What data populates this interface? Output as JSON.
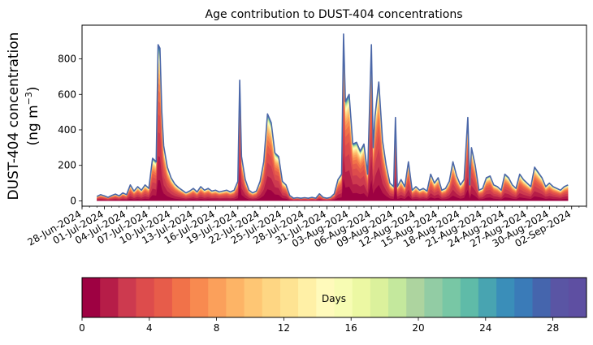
{
  "chart_data": {
    "type": "area",
    "title": "Age contribution to DUST-404 concentrations",
    "ylabel_line1": "DUST-404 concentration",
    "ylabel_line2": "(ng m",
    "ylabel_sup": "−3",
    "ylabel_close": ")",
    "ylim": [
      -30,
      990
    ],
    "yticks": [
      0,
      200,
      400,
      600,
      800
    ],
    "x_start": "2024-06-28",
    "x_end": "2024-09-04",
    "xticks": [
      "28-Jun-2024",
      "01-Jul-2024",
      "04-Jul-2024",
      "07-Jul-2024",
      "10-Jul-2024",
      "13-Jul-2024",
      "16-Jul-2024",
      "19-Jul-2024",
      "22-Jul-2024",
      "25-Jul-2024",
      "28-Jul-2024",
      "31-Jul-2024",
      "03-Aug-2024",
      "06-Aug-2024",
      "09-Aug-2024",
      "12-Aug-2024",
      "15-Aug-2024",
      "18-Aug-2024",
      "21-Aug-2024",
      "24-Aug-2024",
      "27-Aug-2024",
      "30-Aug-2024",
      "02-Sep-2024"
    ],
    "total_series": {
      "name": "total",
      "color": "#4b67a8",
      "points": [
        [
          "2024-06-30 00:00",
          25
        ],
        [
          "2024-06-30 12:00",
          35
        ],
        [
          "2024-07-01 00:00",
          28
        ],
        [
          "2024-07-01 12:00",
          20
        ],
        [
          "2024-07-02 00:00",
          30
        ],
        [
          "2024-07-02 12:00",
          38
        ],
        [
          "2024-07-03 00:00",
          28
        ],
        [
          "2024-07-03 12:00",
          45
        ],
        [
          "2024-07-04 00:00",
          35
        ],
        [
          "2024-07-04 12:00",
          90
        ],
        [
          "2024-07-05 00:00",
          55
        ],
        [
          "2024-07-05 12:00",
          80
        ],
        [
          "2024-07-06 00:00",
          60
        ],
        [
          "2024-07-06 12:00",
          90
        ],
        [
          "2024-07-07 00:00",
          70
        ],
        [
          "2024-07-07 12:00",
          240
        ],
        [
          "2024-07-08 00:00",
          220
        ],
        [
          "2024-07-08 06:00",
          880
        ],
        [
          "2024-07-08 12:00",
          860
        ],
        [
          "2024-07-08 18:00",
          500
        ],
        [
          "2024-07-09 00:00",
          310
        ],
        [
          "2024-07-09 12:00",
          190
        ],
        [
          "2024-07-10 00:00",
          130
        ],
        [
          "2024-07-10 12:00",
          95
        ],
        [
          "2024-07-11 00:00",
          75
        ],
        [
          "2024-07-11 12:00",
          60
        ],
        [
          "2024-07-12 00:00",
          45
        ],
        [
          "2024-07-12 12:00",
          55
        ],
        [
          "2024-07-13 00:00",
          70
        ],
        [
          "2024-07-13 12:00",
          50
        ],
        [
          "2024-07-14 00:00",
          80
        ],
        [
          "2024-07-14 12:00",
          60
        ],
        [
          "2024-07-15 00:00",
          70
        ],
        [
          "2024-07-15 12:00",
          55
        ],
        [
          "2024-07-16 00:00",
          60
        ],
        [
          "2024-07-16 12:00",
          50
        ],
        [
          "2024-07-17 00:00",
          55
        ],
        [
          "2024-07-17 12:00",
          60
        ],
        [
          "2024-07-18 00:00",
          50
        ],
        [
          "2024-07-18 12:00",
          60
        ],
        [
          "2024-07-19 00:00",
          110
        ],
        [
          "2024-07-19 06:00",
          680
        ],
        [
          "2024-07-19 12:00",
          250
        ],
        [
          "2024-07-20 00:00",
          120
        ],
        [
          "2024-07-20 12:00",
          60
        ],
        [
          "2024-07-21 00:00",
          45
        ],
        [
          "2024-07-21 12:00",
          55
        ],
        [
          "2024-07-22 00:00",
          110
        ],
        [
          "2024-07-22 12:00",
          220
        ],
        [
          "2024-07-23 00:00",
          490
        ],
        [
          "2024-07-23 12:00",
          440
        ],
        [
          "2024-07-24 00:00",
          270
        ],
        [
          "2024-07-24 12:00",
          250
        ],
        [
          "2024-07-25 00:00",
          110
        ],
        [
          "2024-07-25 12:00",
          90
        ],
        [
          "2024-07-26 00:00",
          30
        ],
        [
          "2024-07-26 12:00",
          15
        ],
        [
          "2024-07-27 00:00",
          18
        ],
        [
          "2024-07-27 12:00",
          15
        ],
        [
          "2024-07-28 00:00",
          18
        ],
        [
          "2024-07-28 12:00",
          15
        ],
        [
          "2024-07-29 00:00",
          20
        ],
        [
          "2024-07-29 12:00",
          15
        ],
        [
          "2024-07-30 00:00",
          40
        ],
        [
          "2024-07-30 12:00",
          20
        ],
        [
          "2024-07-31 00:00",
          15
        ],
        [
          "2024-07-31 12:00",
          20
        ],
        [
          "2024-08-01 00:00",
          40
        ],
        [
          "2024-08-01 12:00",
          120
        ],
        [
          "2024-08-02 00:00",
          150
        ],
        [
          "2024-08-02 06:00",
          940
        ],
        [
          "2024-08-02 12:00",
          560
        ],
        [
          "2024-08-03 00:00",
          600
        ],
        [
          "2024-08-03 12:00",
          320
        ],
        [
          "2024-08-04 00:00",
          330
        ],
        [
          "2024-08-04 12:00",
          280
        ],
        [
          "2024-08-05 00:00",
          320
        ],
        [
          "2024-08-05 12:00",
          150
        ],
        [
          "2024-08-06 00:00",
          880
        ],
        [
          "2024-08-06 06:00",
          300
        ],
        [
          "2024-08-06 12:00",
          480
        ],
        [
          "2024-08-07 00:00",
          670
        ],
        [
          "2024-08-07 12:00",
          340
        ],
        [
          "2024-08-08 00:00",
          200
        ],
        [
          "2024-08-08 12:00",
          100
        ],
        [
          "2024-08-09 00:00",
          80
        ],
        [
          "2024-08-09 06:00",
          470
        ],
        [
          "2024-08-09 12:00",
          80
        ],
        [
          "2024-08-10 00:00",
          120
        ],
        [
          "2024-08-10 12:00",
          80
        ],
        [
          "2024-08-11 00:00",
          220
        ],
        [
          "2024-08-11 12:00",
          60
        ],
        [
          "2024-08-12 00:00",
          80
        ],
        [
          "2024-08-12 12:00",
          60
        ],
        [
          "2024-08-13 00:00",
          70
        ],
        [
          "2024-08-13 12:00",
          55
        ],
        [
          "2024-08-14 00:00",
          150
        ],
        [
          "2024-08-14 12:00",
          100
        ],
        [
          "2024-08-15 00:00",
          130
        ],
        [
          "2024-08-15 12:00",
          60
        ],
        [
          "2024-08-16 00:00",
          70
        ],
        [
          "2024-08-16 12:00",
          110
        ],
        [
          "2024-08-17 00:00",
          220
        ],
        [
          "2024-08-17 12:00",
          140
        ],
        [
          "2024-08-18 00:00",
          90
        ],
        [
          "2024-08-18 12:00",
          120
        ],
        [
          "2024-08-19 00:00",
          470
        ],
        [
          "2024-08-19 06:00",
          90
        ],
        [
          "2024-08-19 12:00",
          300
        ],
        [
          "2024-08-20 00:00",
          200
        ],
        [
          "2024-08-20 12:00",
          60
        ],
        [
          "2024-08-21 00:00",
          70
        ],
        [
          "2024-08-21 12:00",
          130
        ],
        [
          "2024-08-22 00:00",
          140
        ],
        [
          "2024-08-22 12:00",
          90
        ],
        [
          "2024-08-23 00:00",
          80
        ],
        [
          "2024-08-23 12:00",
          60
        ],
        [
          "2024-08-24 00:00",
          150
        ],
        [
          "2024-08-24 12:00",
          130
        ],
        [
          "2024-08-25 00:00",
          90
        ],
        [
          "2024-08-25 12:00",
          70
        ],
        [
          "2024-08-26 00:00",
          150
        ],
        [
          "2024-08-26 12:00",
          120
        ],
        [
          "2024-08-27 00:00",
          100
        ],
        [
          "2024-08-27 12:00",
          80
        ],
        [
          "2024-08-28 00:00",
          190
        ],
        [
          "2024-08-28 12:00",
          160
        ],
        [
          "2024-08-29 00:00",
          130
        ],
        [
          "2024-08-29 12:00",
          80
        ],
        [
          "2024-08-30 00:00",
          100
        ],
        [
          "2024-08-30 12:00",
          80
        ],
        [
          "2024-08-31 00:00",
          70
        ],
        [
          "2024-08-31 12:00",
          60
        ],
        [
          "2024-09-01 00:00",
          80
        ],
        [
          "2024-09-01 12:00",
          90
        ]
      ]
    },
    "colorbar": {
      "label": "Days",
      "min": 0,
      "max": 30,
      "ticks": [
        0,
        4,
        8,
        12,
        16,
        20,
        24,
        28
      ],
      "colors": [
        "#9e0142",
        "#b61d48",
        "#cd3a4f",
        "#dd4c4c",
        "#e75c4a",
        "#f17249",
        "#f88a50",
        "#fba05b",
        "#fdb466",
        "#fec674",
        "#fed683",
        "#fee392",
        "#fff0a6",
        "#fffabb",
        "#f7fcb3",
        "#ecf8a3",
        "#dbf19c",
        "#c4e89d",
        "#add49f",
        "#92cca4",
        "#78c7a5",
        "#5fbba8",
        "#48a4b1",
        "#3a8eb9",
        "#3a7bb8",
        "#4565ad",
        "#5a55a4",
        "#5e4fa2"
      ]
    }
  }
}
